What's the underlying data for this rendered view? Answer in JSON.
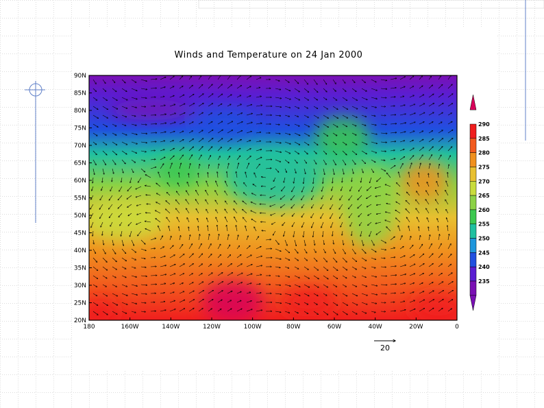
{
  "map": {
    "title": "Winds and Temperature on 24 Jan 2000",
    "lat_labels": [
      "90N",
      "85N",
      "80N",
      "75N",
      "70N",
      "65N",
      "60N",
      "55N",
      "50N",
      "45N",
      "40N",
      "35N",
      "30N",
      "25N",
      "20N"
    ],
    "lon_labels": [
      "180",
      "160W",
      "140W",
      "120W",
      "100W",
      "80W",
      "60W",
      "40W",
      "20W",
      "0"
    ],
    "colorbar": {
      "labels": [
        "290",
        "285",
        "280",
        "275",
        "270",
        "265",
        "260",
        "255",
        "250",
        "245",
        "240",
        "235"
      ],
      "colors": [
        "#d8005a",
        "#f01e1e",
        "#f25a1e",
        "#f0901e",
        "#e8c030",
        "#c8dc3c",
        "#8cd246",
        "#3cc850",
        "#20c0a0",
        "#1e96dc",
        "#2050e0",
        "#5a1ed2",
        "#7a10b4"
      ]
    },
    "reference_vector": "20"
  }
}
